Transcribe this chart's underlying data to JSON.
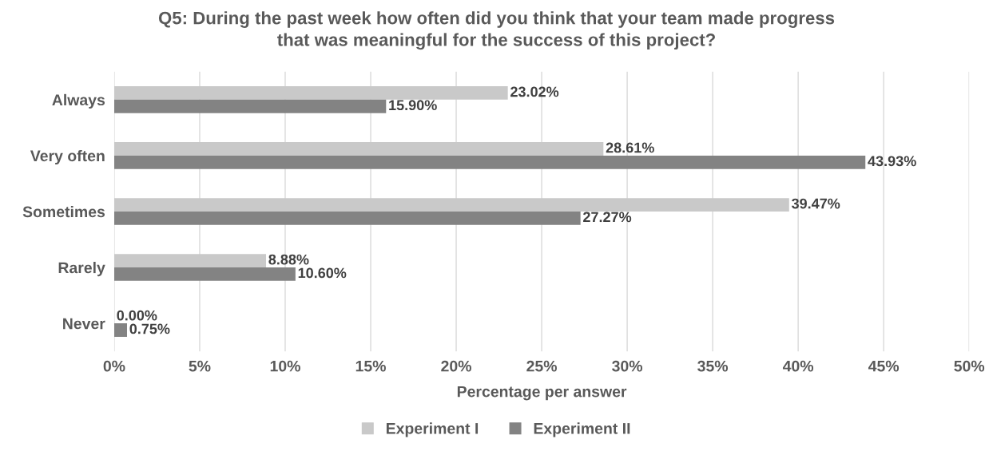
{
  "chart_data": {
    "type": "bar",
    "orientation": "horizontal",
    "title": "Q5: During the past week how often did you think that your team made progress\nthat was meaningful for the success of this project?",
    "xlabel": "Percentage per answer",
    "categories": [
      "Always",
      "Very often",
      "Sometimes",
      "Rarely",
      "Never"
    ],
    "series": [
      {
        "name": "Experiment I",
        "color": "#c9c9c9",
        "values": [
          23.02,
          28.61,
          39.47,
          8.88,
          0.0
        ],
        "value_labels": [
          "23.02%",
          "28.61%",
          "39.47%",
          "8.88%",
          "0.00%"
        ]
      },
      {
        "name": "Experiment II",
        "color": "#838383",
        "values": [
          15.9,
          43.93,
          27.27,
          10.6,
          0.75
        ],
        "value_labels": [
          "15.90%",
          "43.93%",
          "27.27%",
          "10.60%",
          "0.75%"
        ]
      }
    ],
    "xlim": [
      0,
      50
    ],
    "xticks": [
      {
        "value": 0,
        "label": "0%"
      },
      {
        "value": 5,
        "label": "5%"
      },
      {
        "value": 10,
        "label": "10%"
      },
      {
        "value": 15,
        "label": "15%"
      },
      {
        "value": 20,
        "label": "20%"
      },
      {
        "value": 25,
        "label": "25%"
      },
      {
        "value": 30,
        "label": "30%"
      },
      {
        "value": 35,
        "label": "35%"
      },
      {
        "value": 40,
        "label": "40%"
      },
      {
        "value": 45,
        "label": "45%"
      },
      {
        "value": 50,
        "label": "50%"
      }
    ],
    "grid": "x",
    "legend": "bottom"
  }
}
